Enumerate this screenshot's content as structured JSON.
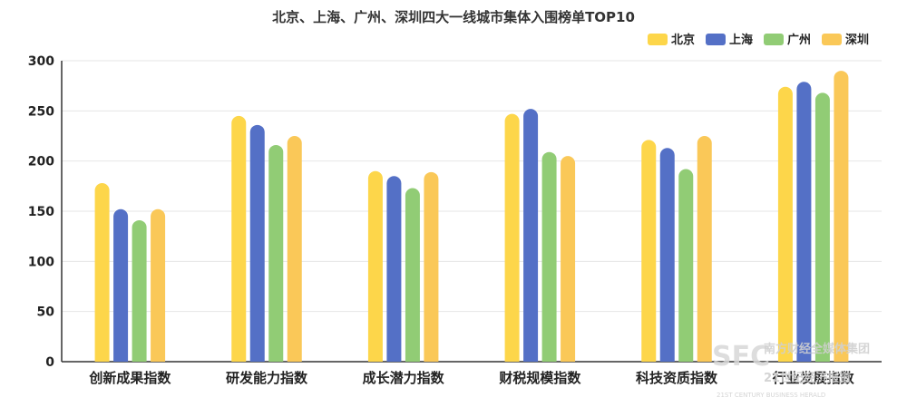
{
  "chart_data": {
    "type": "bar",
    "title": "北京、上海、广州、深圳四大一线城市集体入围榜单TOP10",
    "categories": [
      "创新成果指数",
      "研发能力指数",
      "成长潜力指数",
      "财税规模指数",
      "科技资质指数",
      "行业发展指数"
    ],
    "series": [
      {
        "name": "北京",
        "color": "#fdd64a",
        "values": [
          178,
          245,
          190,
          247,
          221,
          274
        ]
      },
      {
        "name": "上海",
        "color": "#5470c6",
        "values": [
          152,
          236,
          185,
          252,
          213,
          279
        ]
      },
      {
        "name": "广州",
        "color": "#91cc75",
        "values": [
          141,
          216,
          173,
          209,
          192,
          268
        ]
      },
      {
        "name": "深圳",
        "color": "#fac858",
        "values": [
          152,
          225,
          189,
          205,
          225,
          290
        ]
      }
    ],
    "ylim": [
      0,
      300
    ],
    "yticks": [
      0,
      50,
      100,
      150,
      200,
      250,
      300
    ],
    "xlabel": "",
    "ylabel": "",
    "grid": true,
    "legend_position": "top-right"
  },
  "watermark": {
    "brand": "SFC",
    "group": "南方财经全媒体集团",
    "paper": "21世纪经济报道",
    "english": "21ST CENTURY BUSINESS HERALD"
  }
}
